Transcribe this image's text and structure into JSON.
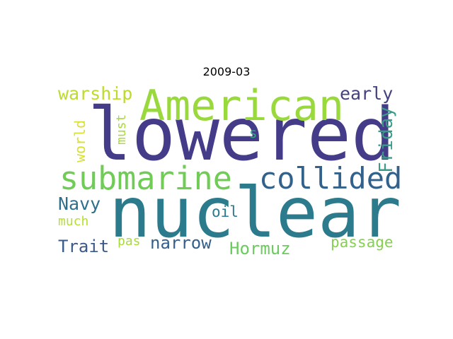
{
  "title": "2009-03",
  "background": "#ffffff",
  "words": [
    {
      "text": "lowered",
      "color": "#453c89",
      "rotated": false
    },
    {
      "text": "nuclear",
      "color": "#2c7b8d",
      "rotated": false
    },
    {
      "text": "American",
      "color": "#9ad93d",
      "rotated": false
    },
    {
      "text": "submarine",
      "color": "#70cc57",
      "rotated": false
    },
    {
      "text": "collided",
      "color": "#32628b",
      "rotated": false
    },
    {
      "text": "warship",
      "color": "#bcdc2b",
      "rotated": false
    },
    {
      "text": "early",
      "color": "#44417e",
      "rotated": false
    },
    {
      "text": "Friday",
      "color": "#3a9c88",
      "rotated": true
    },
    {
      "text": "Navy",
      "color": "#2d6f8c",
      "rotated": false
    },
    {
      "text": "must",
      "color": "#a9d93c",
      "rotated": true
    },
    {
      "text": "world",
      "color": "#d9e02f",
      "rotated": true
    },
    {
      "text": "s",
      "color": "#33a884",
      "rotated": false
    },
    {
      "text": "oil",
      "color": "#2d798d",
      "rotated": false
    },
    {
      "text": "much",
      "color": "#b5df32",
      "rotated": false
    },
    {
      "text": "Trait",
      "color": "#3b5a8a",
      "rotated": false
    },
    {
      "text": "pas",
      "color": "#a8db3a",
      "rotated": false
    },
    {
      "text": "narrow",
      "color": "#355f8c",
      "rotated": false
    },
    {
      "text": "Hormuz",
      "color": "#6ccb5e",
      "rotated": false
    },
    {
      "text": "passage",
      "color": "#83d24c",
      "rotated": false
    }
  ]
}
